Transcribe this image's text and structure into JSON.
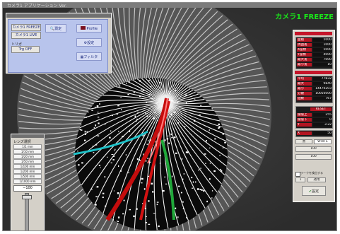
{
  "window": {
    "title": "カメラ1 アプリケーション Ver."
  },
  "overlay": {
    "freeze_label": "カメラ1 FREEZE"
  },
  "control": {
    "cam1_freeze": "カメラ1 FREEZE",
    "cam1_live": "カメラ1 LIVE",
    "measure": "測定",
    "profile": "Profile",
    "trigger_label": "トリガ",
    "trigger_value": "Trg OFF",
    "settings": "設定",
    "filter": "フィルタ"
  },
  "lens": {
    "title": "レンズ選択",
    "items": [
      "1/1 mm",
      "1/10 mm",
      "1/20 mm",
      "1/50 mm",
      "1/100 mm",
      "1/200 mm",
      "1/500 mm",
      "1/1000 mm"
    ],
    "value": "−100"
  },
  "panel": {
    "sec1_title": "測定結果",
    "sec1_rows": [
      {
        "k": "面積",
        "v": "5000"
      },
      {
        "k": "周囲長",
        "v": "1000"
      },
      {
        "k": "X座標",
        "v": "5000"
      },
      {
        "k": "Y座標",
        "v": "4000"
      },
      {
        "k": "最大長",
        "v": "7000"
      },
      {
        "k": "最小長",
        "v": "10"
      }
    ],
    "sec2_title": "統計",
    "sec2_rows": [
      {
        "k": "平均",
        "v": "77832"
      },
      {
        "k": "最大",
        "v": "9840"
      },
      {
        "k": "最小",
        "v": "14470203"
      },
      {
        "k": "分散",
        "v": "10050000"
      },
      {
        "k": "個数",
        "v": "767"
      }
    ],
    "reset": "RESET",
    "thr_rows": [
      {
        "k": "閾値上",
        "v": "255"
      },
      {
        "k": "閾値下",
        "v": "0"
      }
    ],
    "coord_rows": [
      {
        "k": "X",
        "v": "50"
      },
      {
        "k": "Y",
        "v": "3.22"
      }
    ],
    "black_label": "黒",
    "white_label": "WHITE",
    "bin_value": "100",
    "size_value": "100",
    "check_label": "ワークを検出する",
    "num_value": "1",
    "apply": "適用",
    "ok": "設定"
  }
}
